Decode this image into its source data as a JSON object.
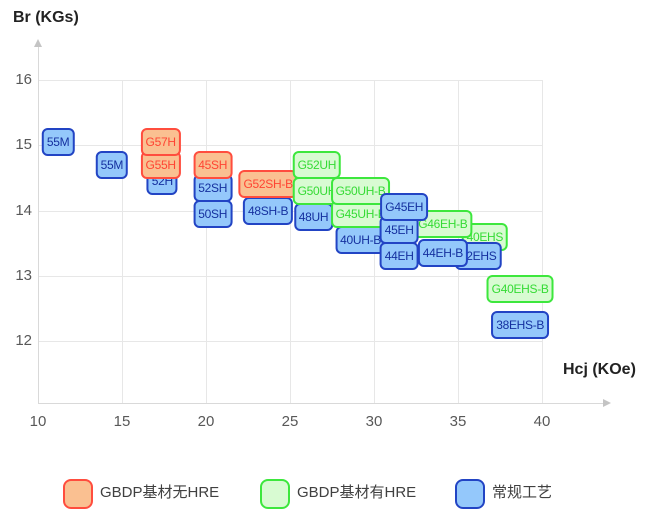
{
  "chart_data": {
    "type": "scatter",
    "title": "",
    "xlabel": "Hcj (KOe)",
    "ylabel": "Br (KGs)",
    "x_ticks": [
      10,
      15,
      20,
      25,
      30,
      35,
      40
    ],
    "y_ticks": [
      16,
      15,
      14,
      13,
      12
    ],
    "xlim": [
      10,
      43.5
    ],
    "ylim": [
      11.1,
      16.5
    ],
    "grid": true,
    "legend_position": "bottom",
    "point_style": "rounded-label-box",
    "series": [
      {
        "name": "GBDP基材无HRE",
        "color": "orange",
        "points": [
          {
            "label": "G57H",
            "hcj": 17.3,
            "br": 15.05,
            "z": 3
          },
          {
            "label": "G55H",
            "hcj": 17.3,
            "br": 14.7,
            "z": 2
          },
          {
            "label": "45SH",
            "hcj": 20.4,
            "br": 14.7,
            "z": 3
          },
          {
            "label": "G52SH-B",
            "hcj": 23.7,
            "br": 14.4,
            "z": 2
          }
        ]
      },
      {
        "name": "GBDP基材有HRE",
        "color": "green",
        "points": [
          {
            "label": "G52UH",
            "hcj": 26.6,
            "br": 14.7,
            "z": 3
          },
          {
            "label": "G50UH",
            "hcj": 26.6,
            "br": 14.3,
            "z": 2
          },
          {
            "label": "G50UH-B",
            "hcj": 29.2,
            "br": 14.3,
            "z": 3
          },
          {
            "label": "G45UH-B",
            "hcj": 29.2,
            "br": 13.95,
            "z": 2
          },
          {
            "label": "G46EH-B",
            "hcj": 34.1,
            "br": 13.8,
            "z": 3
          },
          {
            "label": "40EHS",
            "hcj": 36.6,
            "br": 13.6,
            "z": 1
          },
          {
            "label": "G40EHS-B",
            "hcj": 38.7,
            "br": 12.8,
            "z": 1
          }
        ]
      },
      {
        "name": "常规工艺",
        "color": "blue",
        "points": [
          {
            "label": "55M",
            "hcj": 11.2,
            "br": 15.05,
            "z": 1
          },
          {
            "label": "55M",
            "hcj": 14.4,
            "br": 14.7,
            "z": 1
          },
          {
            "label": "52H",
            "hcj": 17.4,
            "br": 14.45,
            "z": 1
          },
          {
            "label": "52SH",
            "hcj": 20.4,
            "br": 14.35,
            "z": 2
          },
          {
            "label": "50SH",
            "hcj": 20.4,
            "br": 13.95,
            "z": 1
          },
          {
            "label": "48SH-B",
            "hcj": 23.7,
            "br": 14.0,
            "z": 1
          },
          {
            "label": "48UH",
            "hcj": 26.4,
            "br": 13.9,
            "z": 1
          },
          {
            "label": "40UH-B",
            "hcj": 29.2,
            "br": 13.55,
            "z": 1
          },
          {
            "label": "G45EH",
            "hcj": 31.8,
            "br": 14.05,
            "z": 6
          },
          {
            "label": "45EH",
            "hcj": 31.5,
            "br": 13.7,
            "z": 5
          },
          {
            "label": "44EH",
            "hcj": 31.5,
            "br": 13.3,
            "z": 4
          },
          {
            "label": "44EH-B",
            "hcj": 34.1,
            "br": 13.35,
            "z": 4
          },
          {
            "label": "42EHS",
            "hcj": 36.2,
            "br": 13.3,
            "z": 2
          },
          {
            "label": "38EHS-B",
            "hcj": 38.7,
            "br": 12.25,
            "z": 1
          }
        ]
      }
    ]
  },
  "legend": [
    {
      "label": "GBDP基材无HRE",
      "color": "orange"
    },
    {
      "label": "GBDP基材有HRE",
      "color": "green"
    },
    {
      "label": "常规工艺",
      "color": "blue"
    }
  ],
  "colors": {
    "orange": {
      "fill": "#FAC091",
      "border": "#FF4D3E",
      "text": "#FF4433"
    },
    "green": {
      "fill": "#D8FBD2",
      "border": "#3DE73D",
      "text": "#35DB35"
    },
    "blue": {
      "fill": "#94C8FB",
      "border": "#2244C4",
      "text": "#15309F"
    }
  }
}
